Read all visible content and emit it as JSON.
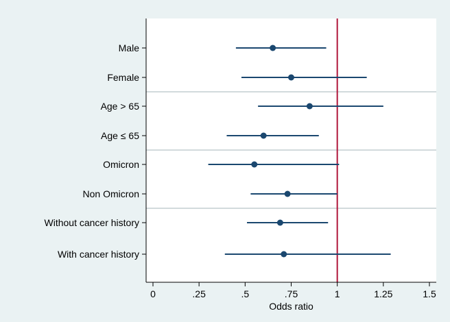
{
  "chart_data": {
    "type": "scatter",
    "subtype": "forest-plot",
    "xlabel": "Odds ratio",
    "ylabel": "",
    "xlim": [
      0,
      1.5
    ],
    "x_ticks": [
      0,
      0.25,
      0.5,
      0.75,
      1,
      1.25,
      1.5
    ],
    "x_tick_labels": [
      "0",
      ".25",
      ".5",
      ".75",
      "1",
      "1.25",
      "1.5"
    ],
    "reference_line": 1,
    "grid": false,
    "group_separators_after": [
      1,
      3,
      5
    ],
    "categories": [
      "Male",
      "Female",
      "Age > 65",
      "Age ≤ 65",
      "Omicron",
      "Non Omicron",
      "Without cancer history",
      "With cancer history"
    ],
    "estimates": [
      0.65,
      0.75,
      0.85,
      0.6,
      0.55,
      0.73,
      0.69,
      0.71
    ],
    "ci_lower": [
      0.45,
      0.48,
      0.57,
      0.4,
      0.3,
      0.53,
      0.51,
      0.39
    ],
    "ci_upper": [
      0.94,
      1.16,
      1.25,
      0.9,
      1.01,
      1.0,
      0.95,
      1.29
    ]
  },
  "colors": {
    "outer_background": "#eaf2f3",
    "plot_background": "#ffffff",
    "marker": "#1a476f",
    "ci_line": "#1a476f",
    "reference_line": "#b0153a",
    "separator": "#b8c4c6",
    "axis": "#000000"
  }
}
